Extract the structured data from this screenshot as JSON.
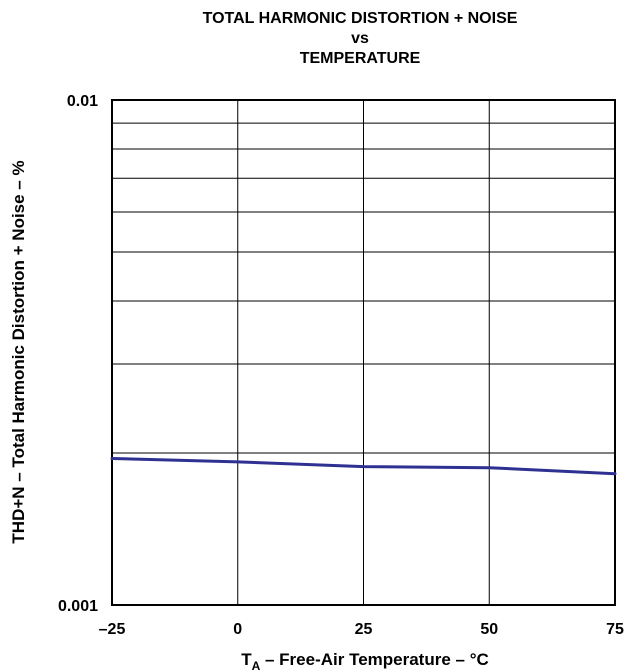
{
  "chart_data": {
    "type": "line",
    "title_lines": [
      "TOTAL HARMONIC DISTORTION + NOISE",
      "vs",
      "TEMPERATURE"
    ],
    "xlabel": {
      "main": "T",
      "subscript": "A",
      "rest": " – Free-Air Temperature – °C"
    },
    "ylabel": "THD+N – Total Harmonic Distortion + Noise – %",
    "x_ticks": [
      "–25",
      "0",
      "25",
      "50",
      "75"
    ],
    "y_ticks": [
      "0.01",
      "0.001"
    ],
    "xlim": [
      -25,
      75
    ],
    "ylim": [
      0.001,
      0.01
    ],
    "y_scale": "log",
    "grid": true,
    "series": [
      {
        "color": "#2e3192",
        "x": [
          -25,
          0,
          25,
          50,
          75
        ],
        "y": [
          0.00195,
          0.00192,
          0.00188,
          0.00187,
          0.00182
        ]
      }
    ]
  }
}
